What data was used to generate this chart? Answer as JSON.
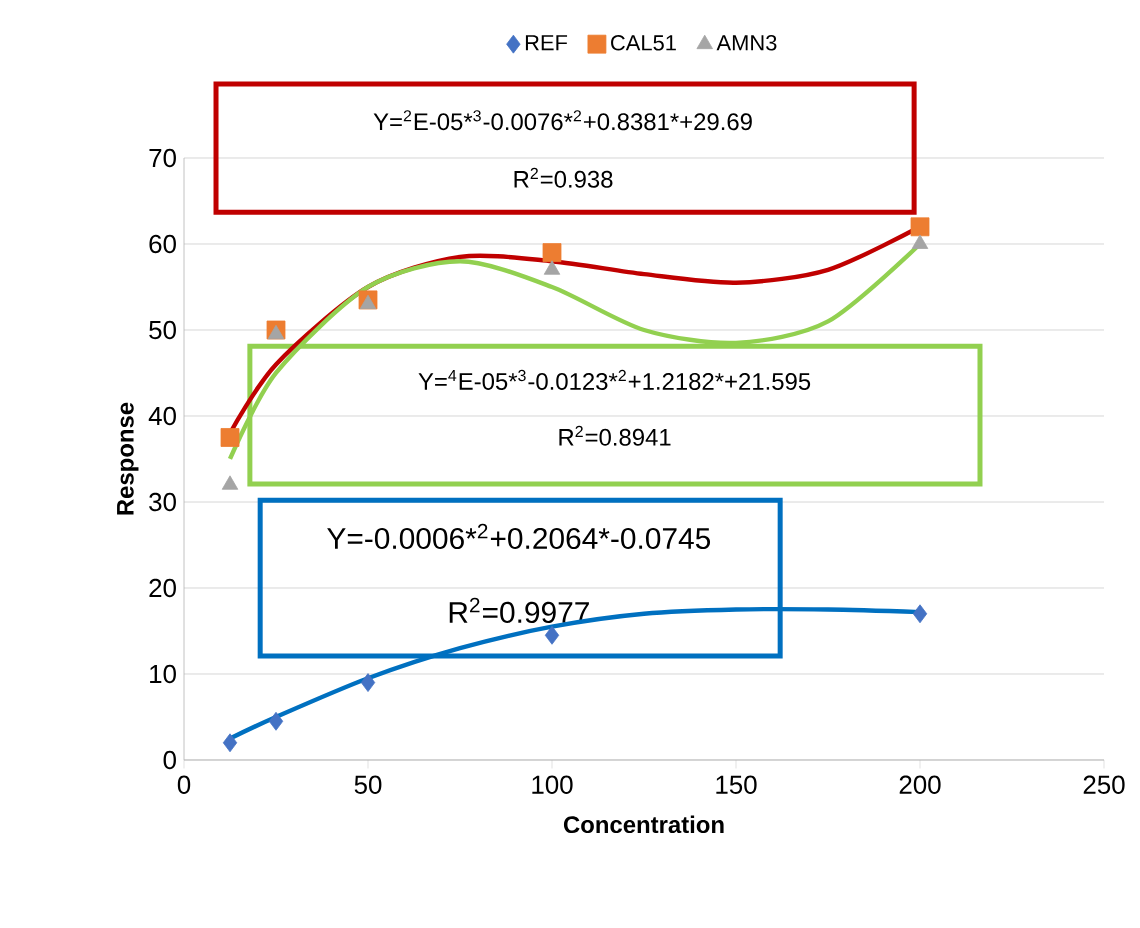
{
  "chart_data": {
    "type": "scatter",
    "xlabel": "Concentration",
    "ylabel": "Response",
    "xlim": [
      0,
      250
    ],
    "xticks": [
      0,
      50,
      100,
      150,
      200,
      250
    ],
    "ylim": [
      0,
      70
    ],
    "yticks": [
      0,
      10,
      20,
      30,
      40,
      50,
      60,
      70
    ],
    "grid": "y",
    "legend": "top",
    "series": [
      {
        "name": "REF",
        "color": "#4472c4",
        "marker": "diamond",
        "x": [
          12.5,
          25,
          50,
          100,
          200
        ],
        "values": [
          2,
          4.5,
          9,
          14.5,
          17
        ]
      },
      {
        "name": "CAL51",
        "color": "#ed7d31",
        "marker": "square",
        "x": [
          12.5,
          25,
          50,
          100,
          200
        ],
        "values": [
          37.5,
          50,
          53.5,
          59,
          62
        ]
      },
      {
        "name": "AMN3",
        "color": "#a5a5a5",
        "marker": "triangle",
        "x": [
          12.5,
          25,
          50,
          100,
          200
        ],
        "values": [
          32,
          49.5,
          53,
          57,
          60
        ]
      },
      {
        "type": "line",
        "color": "#0070c0",
        "marker": "none",
        "x": [
          12.5,
          25,
          50,
          75,
          100,
          125,
          150,
          175,
          200
        ],
        "values": [
          2.5,
          5,
          9.5,
          13,
          15.5,
          17,
          17.5,
          17.5,
          17.2
        ]
      },
      {
        "type": "line",
        "color": "#c00000",
        "marker": "none",
        "x": [
          12.5,
          25,
          50,
          75,
          100,
          125,
          150,
          175,
          200
        ],
        "values": [
          38,
          46,
          55,
          58.5,
          58,
          56.5,
          55.5,
          57,
          62
        ]
      },
      {
        "type": "line",
        "color": "#92d050",
        "marker": "none",
        "x": [
          12.5,
          25,
          50,
          75,
          100,
          125,
          150,
          175,
          200
        ],
        "values": [
          35,
          45,
          55,
          58,
          55,
          50,
          48.5,
          51,
          60
        ]
      }
    ],
    "annotations": [
      "Y=$^{2}$E-05*$^{3}$-0.0076*$^{2}$+0.8381*+29.69",
      "R$^{2}$=0.938",
      "Y=$^{4}$E-05*$^{3}$-0.0123*$^{2}$+1.2182*+21.595",
      "R$^{2}$=0.8941",
      "Y=-0.0006*$^{2}$+0.2064*-0.0745",
      "R$^{2}$=0.9977"
    ]
  }
}
